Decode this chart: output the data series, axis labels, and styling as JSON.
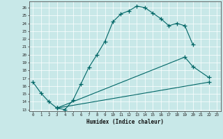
{
  "xlabel": "Humidex (Indice chaleur)",
  "bg_color": "#c8e8e8",
  "line_color": "#006666",
  "xlim": [
    -0.5,
    23.5
  ],
  "ylim": [
    12.8,
    26.8
  ],
  "xticks": [
    0,
    1,
    2,
    3,
    4,
    5,
    6,
    7,
    8,
    9,
    10,
    11,
    12,
    13,
    14,
    15,
    16,
    17,
    18,
    19,
    20,
    21,
    22,
    23
  ],
  "yticks": [
    13,
    14,
    15,
    16,
    17,
    18,
    19,
    20,
    21,
    22,
    23,
    24,
    25,
    26
  ],
  "series": [
    {
      "x": [
        0,
        1,
        2,
        3,
        4,
        5,
        6,
        7,
        8,
        9,
        10,
        11,
        12,
        13,
        14,
        15,
        16,
        17,
        18,
        19,
        20
      ],
      "y": [
        16.5,
        15.1,
        14.0,
        13.2,
        13.0,
        14.2,
        16.3,
        18.4,
        20.0,
        21.7,
        24.2,
        25.2,
        25.6,
        26.2,
        26.0,
        25.3,
        24.6,
        23.7,
        24.0,
        23.7,
        21.3
      ]
    },
    {
      "x": [
        3,
        19,
        20,
        22
      ],
      "y": [
        13.2,
        19.7,
        18.5,
        17.1
      ]
    },
    {
      "x": [
        3,
        22
      ],
      "y": [
        13.2,
        16.5
      ]
    }
  ]
}
